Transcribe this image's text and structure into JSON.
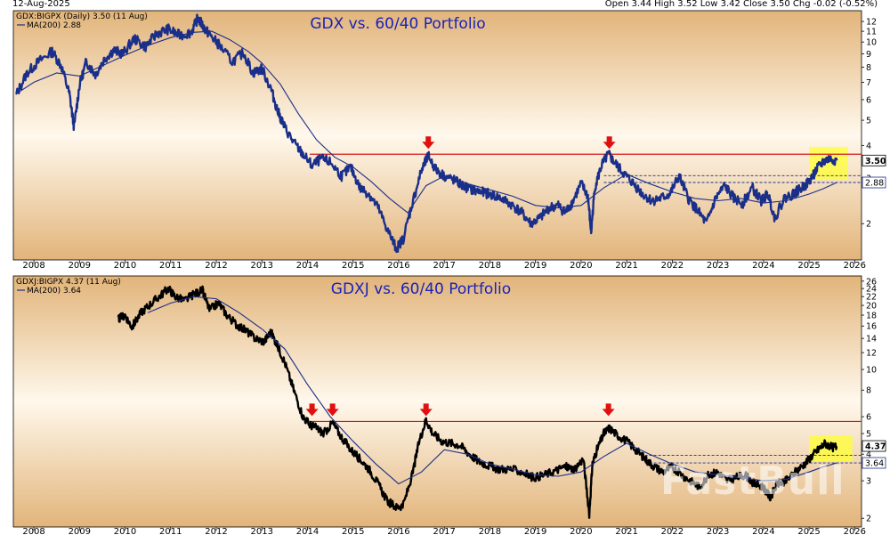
{
  "header": {
    "date": "12-Aug-2025",
    "ohlc": "Open 3.44 High 3.52 Low 3.42 Close 3.50 Chg -0.02 (-0.52%)"
  },
  "watermark": "FastBull",
  "colors": {
    "bg_light": "#fff8ec",
    "bg_dark": "#e2b47a",
    "resistance": "#d01818",
    "arrow": "#e01010",
    "highlight": "#ffff33"
  },
  "chart_data": [
    {
      "type": "line",
      "title": "GDX vs. 60/40 Portfolio",
      "symbol_label": "GDX:BIGPX (Daily) 3.50 (11 Aug)",
      "ma_label": "MA(200) 2.88",
      "series_color": "#1a2f8a",
      "ma_color": "#1a2f8a",
      "y_scale": "log",
      "ylim": [
        1.45,
        13.2
      ],
      "xlim": [
        2007.55,
        2026.15
      ],
      "y_ticks": [
        "12",
        "11",
        "10",
        "9",
        "8",
        "7",
        "6",
        "5",
        "4",
        "3",
        "2"
      ],
      "x_ticks": [
        "2008",
        "2009",
        "2010",
        "2011",
        "2012",
        "2013",
        "2014",
        "2015",
        "2016",
        "2017",
        "2018",
        "2019",
        "2020",
        "2021",
        "2022",
        "2023",
        "2024",
        "2025",
        "2026"
      ],
      "last_value_label": "3.50",
      "ma_value_label": "2.88",
      "resistance_level": 3.7,
      "resistance_from": 2014.05,
      "support_band": [
        2.88,
        3.06
      ],
      "support_from": 2020.5,
      "arrows_at": [
        2016.65,
        2020.62
      ],
      "highlight_box": {
        "x": [
          2025.0,
          2025.85
        ],
        "y": [
          2.95,
          3.95
        ]
      },
      "series": [
        {
          "name": "GDX:BIGPX",
          "x": [
            2007.6,
            2007.85,
            2008.1,
            2008.4,
            2008.6,
            2008.78,
            2008.88,
            2009.0,
            2009.15,
            2009.35,
            2009.55,
            2009.75,
            2009.95,
            2010.2,
            2010.45,
            2010.7,
            2010.95,
            2011.2,
            2011.45,
            2011.6,
            2011.72,
            2011.85,
            2012.05,
            2012.35,
            2012.6,
            2012.8,
            2013.0,
            2013.2,
            2013.35,
            2013.5,
            2013.7,
            2013.9,
            2014.1,
            2014.3,
            2014.5,
            2014.75,
            2014.95,
            2015.15,
            2015.35,
            2015.55,
            2015.75,
            2015.95,
            2016.1,
            2016.3,
            2016.5,
            2016.65,
            2016.8,
            2017.0,
            2017.2,
            2017.4,
            2017.6,
            2017.8,
            2018.0,
            2018.25,
            2018.5,
            2018.7,
            2018.9,
            2019.1,
            2019.3,
            2019.5,
            2019.65,
            2019.8,
            2020.0,
            2020.15,
            2020.22,
            2020.3,
            2020.45,
            2020.6,
            2020.75,
            2020.95,
            2021.15,
            2021.35,
            2021.55,
            2021.75,
            2021.95,
            2022.15,
            2022.35,
            2022.55,
            2022.75,
            2022.95,
            2023.15,
            2023.35,
            2023.55,
            2023.75,
            2023.95,
            2024.1,
            2024.25,
            2024.45,
            2024.65,
            2024.85,
            2025.0,
            2025.15,
            2025.3,
            2025.45,
            2025.61
          ],
          "y": [
            6.2,
            7.6,
            8.4,
            9.2,
            8.1,
            6.3,
            4.7,
            6.8,
            8.4,
            7.5,
            8.6,
            9.3,
            9.0,
            10.3,
            9.6,
            10.8,
            11.2,
            10.6,
            10.9,
            12.4,
            11.4,
            10.7,
            9.8,
            8.4,
            9.1,
            7.6,
            7.9,
            6.6,
            5.4,
            4.7,
            4.1,
            3.7,
            3.35,
            3.55,
            3.45,
            3.05,
            3.3,
            2.75,
            2.6,
            2.3,
            1.9,
            1.6,
            1.75,
            2.4,
            3.2,
            3.65,
            3.25,
            3.05,
            2.95,
            2.8,
            2.7,
            2.65,
            2.6,
            2.5,
            2.35,
            2.2,
            2.0,
            2.1,
            2.3,
            2.35,
            2.2,
            2.4,
            2.85,
            2.55,
            1.85,
            2.75,
            3.35,
            3.7,
            3.4,
            3.1,
            2.85,
            2.6,
            2.45,
            2.5,
            2.6,
            3.05,
            2.5,
            2.25,
            2.0,
            2.5,
            2.8,
            2.5,
            2.4,
            2.75,
            2.45,
            2.6,
            2.1,
            2.5,
            2.6,
            2.75,
            2.9,
            3.2,
            3.45,
            3.55,
            3.5
          ]
        },
        {
          "name": "MA(200)",
          "x": [
            2007.6,
            2008.0,
            2008.5,
            2009.0,
            2009.5,
            2010.0,
            2010.5,
            2011.0,
            2011.5,
            2011.9,
            2012.3,
            2012.7,
            2013.0,
            2013.4,
            2013.8,
            2014.2,
            2014.6,
            2015.0,
            2015.4,
            2015.8,
            2016.2,
            2016.6,
            2017.0,
            2017.5,
            2018.0,
            2018.5,
            2019.0,
            2019.5,
            2020.0,
            2020.5,
            2021.0,
            2021.5,
            2022.0,
            2022.5,
            2023.0,
            2023.5,
            2024.0,
            2024.5,
            2025.0,
            2025.3,
            2025.61
          ],
          "y": [
            6.3,
            7.0,
            7.6,
            7.4,
            8.1,
            8.9,
            9.7,
            10.4,
            10.9,
            11.0,
            10.2,
            9.2,
            8.3,
            6.9,
            5.3,
            4.2,
            3.6,
            3.3,
            2.9,
            2.5,
            2.2,
            2.8,
            3.05,
            2.85,
            2.7,
            2.55,
            2.35,
            2.3,
            2.35,
            2.75,
            3.1,
            2.85,
            2.65,
            2.5,
            2.45,
            2.5,
            2.4,
            2.45,
            2.6,
            2.72,
            2.88
          ]
        }
      ]
    },
    {
      "type": "line",
      "title": "GDXJ vs. 60/40 Portfolio",
      "symbol_label": "GDXJ:BIGPX 4.37 (11 Aug)",
      "ma_label": "MA(200) 3.64",
      "series_color": "#000000",
      "ma_color": "#1a2f8a",
      "y_scale": "log",
      "ylim": [
        1.82,
        27.5
      ],
      "xlim": [
        2007.55,
        2026.15
      ],
      "y_ticks": [
        "26",
        "24",
        "22",
        "20",
        "18",
        "16",
        "14",
        "12",
        "10",
        "8",
        "6",
        "5",
        "4",
        "3",
        "2"
      ],
      "x_ticks": [
        "2008",
        "2009",
        "2010",
        "2011",
        "2012",
        "2013",
        "2014",
        "2015",
        "2016",
        "2017",
        "2018",
        "2019",
        "2020",
        "2021",
        "2022",
        "2023",
        "2024",
        "2025",
        "2026"
      ],
      "last_value_label": "4.37",
      "ma_value_label": "3.64",
      "resistance_level": 5.7,
      "resistance_from": 2014.0,
      "support_band": [
        3.64,
        3.95
      ],
      "support_from": 2021.4,
      "arrows_at": [
        2014.1,
        2014.55,
        2016.6,
        2020.6
      ],
      "highlight_box": {
        "x": [
          2025.0,
          2025.95
        ],
        "y": [
          3.7,
          4.9
        ]
      },
      "series": [
        {
          "name": "GDXJ:BIGPX",
          "x": [
            2009.85,
            2010.0,
            2010.15,
            2010.35,
            2010.55,
            2010.75,
            2010.95,
            2011.1,
            2011.3,
            2011.5,
            2011.7,
            2011.85,
            2012.05,
            2012.25,
            2012.45,
            2012.65,
            2012.85,
            2013.05,
            2013.2,
            2013.35,
            2013.5,
            2013.7,
            2013.9,
            2014.05,
            2014.2,
            2014.35,
            2014.55,
            2014.75,
            2014.95,
            2015.15,
            2015.35,
            2015.55,
            2015.75,
            2015.95,
            2016.1,
            2016.3,
            2016.45,
            2016.6,
            2016.75,
            2016.95,
            2017.15,
            2017.35,
            2017.55,
            2017.75,
            2017.95,
            2018.2,
            2018.45,
            2018.7,
            2018.95,
            2019.2,
            2019.45,
            2019.65,
            2019.85,
            2020.05,
            2020.18,
            2020.25,
            2020.35,
            2020.5,
            2020.62,
            2020.8,
            2021.0,
            2021.2,
            2021.4,
            2021.6,
            2021.8,
            2022.0,
            2022.2,
            2022.4,
            2022.6,
            2022.8,
            2023.0,
            2023.2,
            2023.4,
            2023.6,
            2023.8,
            2024.0,
            2024.15,
            2024.3,
            2024.5,
            2024.7,
            2024.9,
            2025.05,
            2025.2,
            2025.35,
            2025.5,
            2025.61
          ],
          "y": [
            17.2,
            18.0,
            15.8,
            18.5,
            20.2,
            22.0,
            24.0,
            22.0,
            21.0,
            22.5,
            23.5,
            19.0,
            20.5,
            17.8,
            16.2,
            15.2,
            14.0,
            13.5,
            15.0,
            12.8,
            10.8,
            8.0,
            6.0,
            5.5,
            5.3,
            5.0,
            5.6,
            4.8,
            4.2,
            3.8,
            3.4,
            2.9,
            2.4,
            2.25,
            2.3,
            3.2,
            4.6,
            5.8,
            5.0,
            4.6,
            4.5,
            4.4,
            4.0,
            3.7,
            3.55,
            3.4,
            3.4,
            3.3,
            3.1,
            3.2,
            3.35,
            3.5,
            3.4,
            3.8,
            2.1,
            3.6,
            4.2,
            5.0,
            5.3,
            4.9,
            4.6,
            4.2,
            3.8,
            3.5,
            3.3,
            3.5,
            3.2,
            3.0,
            2.8,
            3.2,
            3.3,
            3.0,
            3.1,
            3.2,
            2.9,
            2.8,
            2.5,
            2.9,
            3.0,
            3.3,
            3.6,
            3.9,
            4.2,
            4.5,
            4.3,
            4.37
          ]
        },
        {
          "name": "MA(200)",
          "x": [
            2010.5,
            2011.0,
            2011.5,
            2012.0,
            2012.5,
            2013.0,
            2013.5,
            2014.0,
            2014.5,
            2015.0,
            2015.5,
            2016.0,
            2016.5,
            2017.0,
            2017.5,
            2018.0,
            2018.5,
            2019.0,
            2019.5,
            2020.0,
            2020.5,
            2021.0,
            2021.5,
            2022.0,
            2022.5,
            2023.0,
            2023.5,
            2024.0,
            2024.5,
            2025.0,
            2025.3,
            2025.61
          ],
          "y": [
            18.5,
            20.5,
            22.0,
            21.5,
            18.5,
            15.5,
            12.5,
            8.5,
            6.0,
            4.6,
            3.6,
            2.9,
            3.3,
            4.2,
            4.0,
            3.6,
            3.4,
            3.2,
            3.15,
            3.3,
            3.9,
            4.5,
            4.0,
            3.6,
            3.3,
            3.2,
            3.1,
            3.0,
            3.05,
            3.3,
            3.48,
            3.64
          ]
        }
      ]
    }
  ]
}
